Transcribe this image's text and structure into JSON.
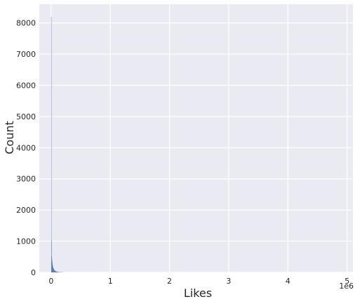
{
  "chart_data": {
    "type": "bar",
    "subtype": "histogram",
    "title": "",
    "xlabel": "Likes",
    "ylabel": "Count",
    "x_offset_label": "1e6",
    "xlim": [
      -0.2,
      5.1
    ],
    "ylim": [
      0,
      8600
    ],
    "x_ticks": [
      0,
      1,
      2,
      3,
      4,
      5
    ],
    "y_ticks": [
      0,
      1000,
      2000,
      3000,
      4000,
      5000,
      6000,
      7000,
      8000
    ],
    "grid": true,
    "background": "#eaeaf2",
    "grid_color": "#ffffff",
    "bar_color": "#4c72b0",
    "series": [
      {
        "bin_edges": [
          0,
          0.0034,
          0.0068,
          0.0102,
          0.0136,
          0.017,
          0.0204,
          0.0238,
          0.0272,
          0.0306,
          0.034,
          0.0374,
          0.0408,
          0.0442,
          0.0476,
          0.051,
          0.0544,
          0.0578,
          0.0612,
          0.0646,
          0.068,
          0.0714,
          0.0748,
          0.0782,
          0.0816,
          0.085,
          0.0884,
          0.0918,
          0.0952,
          0.0986,
          0.102,
          0.1054,
          0.1088,
          0.1122,
          0.1156,
          0.119,
          0.1224,
          0.1258,
          0.1292,
          0.1326,
          0.136,
          0.1394,
          0.1428,
          0.1462,
          0.1496,
          0.153,
          0.1564,
          0.1598,
          0.1632,
          0.1666,
          0.17,
          0.1734,
          0.1768,
          0.1802,
          0.1836,
          0.187,
          0.1904,
          0.1938,
          0.1972,
          0.2006,
          0.204
        ],
        "counts": [
          8200,
          1020,
          520,
          430,
          360,
          300,
          250,
          210,
          180,
          155,
          135,
          120,
          105,
          95,
          85,
          76,
          68,
          60,
          54,
          48,
          44,
          40,
          36,
          32,
          29,
          26,
          24,
          22,
          20,
          18,
          16,
          15,
          14,
          13,
          12,
          11,
          10,
          9,
          9,
          8,
          8,
          7,
          7,
          6,
          6,
          6,
          5,
          5,
          5,
          4,
          4,
          4,
          4,
          3,
          3,
          3,
          3,
          3,
          2,
          2
        ]
      }
    ]
  }
}
